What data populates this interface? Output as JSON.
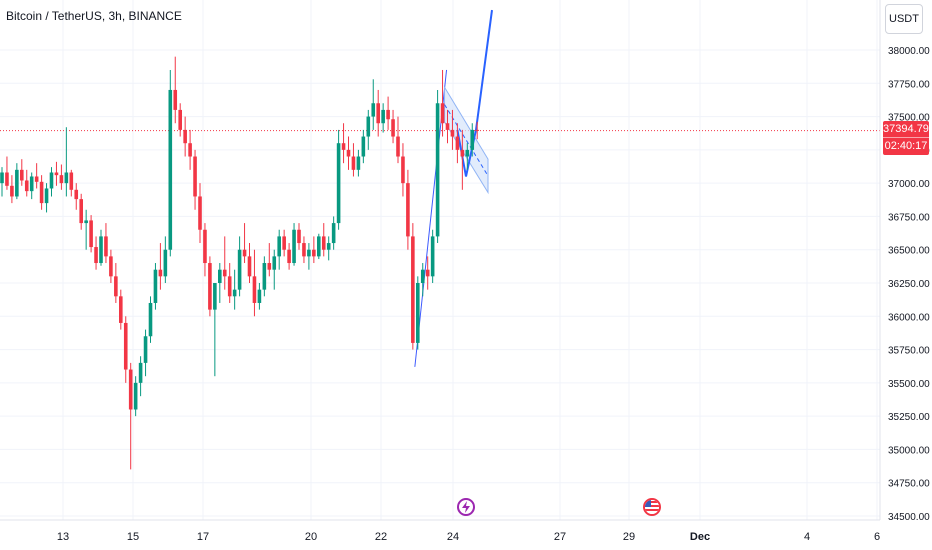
{
  "header": {
    "title": "Bitcoin / TetherUS, 3h, BINANCE"
  },
  "currency_button": {
    "label": "USDT"
  },
  "price_badge": {
    "price": "37394.79",
    "countdown": "02:40:17"
  },
  "events": [
    {
      "icon": "lightning-event-icon"
    },
    {
      "icon": "us-flag-event-icon"
    }
  ],
  "colors": {
    "up": "#089981",
    "down": "#f23645",
    "drawing": "#2962ff",
    "channel_fill": "#d6e4fb"
  },
  "chart_data": {
    "type": "candlestick",
    "title": "Bitcoin / TetherUS, 3h, BINANCE",
    "y_axis": {
      "ticks": [
        "34500.00",
        "34750.00",
        "35000.00",
        "35250.00",
        "35500.00",
        "35750.00",
        "36000.00",
        "36250.00",
        "36500.00",
        "36750.00",
        "37000.00",
        "37250.00",
        "37500.00",
        "37750.00",
        "38000.00"
      ],
      "range": [
        34500,
        38250
      ]
    },
    "x_axis": {
      "ticks": [
        "13",
        "15",
        "17",
        "20",
        "22",
        "24",
        "27",
        "29",
        "Dec",
        "4",
        "6"
      ]
    },
    "last_price": 37394.79,
    "candles_ohlc": [
      [
        37000,
        37120,
        36900,
        37080
      ],
      [
        37080,
        37200,
        36950,
        36980
      ],
      [
        36980,
        37060,
        36850,
        36900
      ],
      [
        36900,
        37150,
        36880,
        37100
      ],
      [
        37100,
        37180,
        36980,
        37020
      ],
      [
        37020,
        37100,
        36900,
        36940
      ],
      [
        36940,
        37080,
        36880,
        37050
      ],
      [
        37050,
        37150,
        36960,
        37010
      ],
      [
        37010,
        37060,
        36800,
        36850
      ],
      [
        36850,
        37000,
        36780,
        36960
      ],
      [
        36960,
        37120,
        36900,
        37080
      ],
      [
        37080,
        37160,
        36980,
        37060
      ],
      [
        37060,
        37140,
        36950,
        37000
      ],
      [
        37000,
        37420,
        36900,
        37080
      ],
      [
        37080,
        37100,
        36900,
        36950
      ],
      [
        36950,
        37000,
        36800,
        36880
      ],
      [
        36880,
        36920,
        36650,
        36700
      ],
      [
        36700,
        36800,
        36500,
        36720
      ],
      [
        36720,
        36760,
        36480,
        36520
      ],
      [
        36520,
        36600,
        36350,
        36400
      ],
      [
        36400,
        36650,
        36380,
        36600
      ],
      [
        36600,
        36700,
        36400,
        36450
      ],
      [
        36450,
        36500,
        36250,
        36300
      ],
      [
        36300,
        36400,
        36100,
        36150
      ],
      [
        36150,
        36200,
        35900,
        35950
      ],
      [
        35950,
        36000,
        35500,
        35600
      ],
      [
        35600,
        35650,
        34850,
        35300
      ],
      [
        35300,
        35550,
        35250,
        35500
      ],
      [
        35500,
        35700,
        35400,
        35650
      ],
      [
        35650,
        35900,
        35550,
        35850
      ],
      [
        35850,
        36150,
        35800,
        36100
      ],
      [
        36100,
        36400,
        36050,
        36350
      ],
      [
        36350,
        36550,
        36200,
        36300
      ],
      [
        36300,
        36600,
        36250,
        36500
      ],
      [
        36500,
        37850,
        36450,
        37700
      ],
      [
        37700,
        37950,
        37450,
        37550
      ],
      [
        37550,
        37600,
        37350,
        37400
      ],
      [
        37400,
        37500,
        37200,
        37300
      ],
      [
        37300,
        37400,
        37100,
        37200
      ],
      [
        37200,
        37250,
        36800,
        36900
      ],
      [
        36900,
        37000,
        36550,
        36650
      ],
      [
        36650,
        36700,
        36300,
        36400
      ],
      [
        36400,
        36450,
        36000,
        36050
      ],
      [
        36050,
        36200,
        35550,
        36250
      ],
      [
        36250,
        36400,
        36100,
        36350
      ],
      [
        36350,
        36600,
        36200,
        36300
      ],
      [
        36300,
        36400,
        36100,
        36150
      ],
      [
        36150,
        36350,
        36050,
        36200
      ],
      [
        36200,
        36600,
        36150,
        36500
      ],
      [
        36500,
        36700,
        36400,
        36450
      ],
      [
        36450,
        36550,
        36250,
        36300
      ],
      [
        36300,
        36500,
        36000,
        36100
      ],
      [
        36100,
        36250,
        36050,
        36200
      ],
      [
        36200,
        36450,
        36150,
        36400
      ],
      [
        36400,
        36550,
        36300,
        36350
      ],
      [
        36350,
        36500,
        36200,
        36450
      ],
      [
        36450,
        36650,
        36350,
        36600
      ],
      [
        36600,
        36650,
        36450,
        36500
      ],
      [
        36500,
        36550,
        36350,
        36400
      ],
      [
        36400,
        36700,
        36380,
        36650
      ],
      [
        36650,
        36700,
        36500,
        36550
      ],
      [
        36550,
        36600,
        36400,
        36450
      ],
      [
        36450,
        36550,
        36350,
        36500
      ],
      [
        36500,
        36600,
        36400,
        36450
      ],
      [
        36450,
        36620,
        36430,
        36600
      ],
      [
        36600,
        36700,
        36450,
        36500
      ],
      [
        36500,
        36600,
        36420,
        36550
      ],
      [
        36550,
        36750,
        36500,
        36700
      ],
      [
        36700,
        37400,
        36650,
        37300
      ],
      [
        37300,
        37450,
        37150,
        37250
      ],
      [
        37250,
        37350,
        37100,
        37200
      ],
      [
        37200,
        37300,
        37050,
        37100
      ],
      [
        37100,
        37250,
        37050,
        37200
      ],
      [
        37200,
        37400,
        37150,
        37350
      ],
      [
        37350,
        37550,
        37250,
        37500
      ],
      [
        37500,
        37780,
        37400,
        37600
      ],
      [
        37600,
        37700,
        37350,
        37450
      ],
      [
        37450,
        37600,
        37380,
        37550
      ],
      [
        37550,
        37650,
        37400,
        37480
      ],
      [
        37480,
        37550,
        37300,
        37350
      ],
      [
        37350,
        37500,
        37150,
        37200
      ],
      [
        37200,
        37300,
        36900,
        37000
      ],
      [
        37000,
        37100,
        36500,
        36600
      ],
      [
        36600,
        36700,
        35750,
        35800
      ],
      [
        35800,
        36300,
        35750,
        36250
      ],
      [
        36250,
        36400,
        36150,
        36350
      ],
      [
        36350,
        36450,
        36200,
        36300
      ],
      [
        36300,
        36650,
        36250,
        36600
      ],
      [
        36600,
        37700,
        36550,
        37600
      ],
      [
        37600,
        37850,
        37350,
        37450
      ],
      [
        37450,
        37550,
        37300,
        37400
      ],
      [
        37400,
        37550,
        37250,
        37350
      ],
      [
        37350,
        37450,
        37150,
        37250
      ],
      [
        37250,
        37400,
        36950,
        37200
      ],
      [
        37200,
        37300,
        37100,
        37250
      ],
      [
        37250,
        37450,
        37200,
        37400
      ],
      [
        37400,
        37460,
        37330,
        37395
      ]
    ],
    "drawings": {
      "impulse_line": {
        "from": [
          35620,
          "bar 83"
        ],
        "to": [
          37850,
          "bar 89"
        ]
      },
      "channel": {
        "upper_start": 37700,
        "lower_start": 37450,
        "end_upper": 37150,
        "end_lower": 36900
      },
      "projection": {
        "from": 37050,
        "to": 38250
      }
    }
  }
}
